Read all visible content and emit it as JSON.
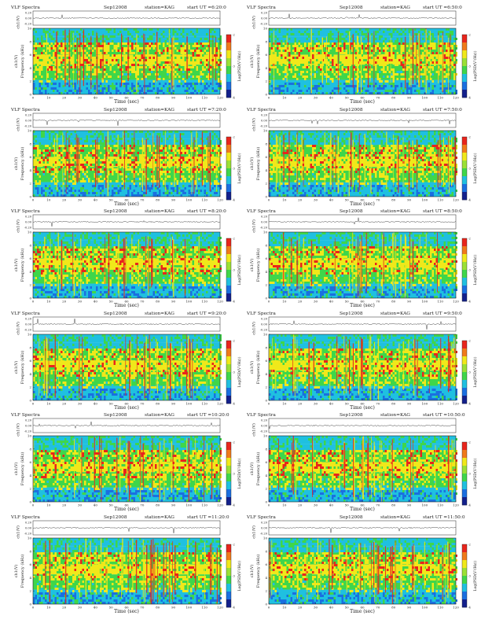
{
  "chart_data": [
    {
      "type": "heatmap",
      "header": {
        "left": "VLF Spectra",
        "date": "Sep12008",
        "station": "station=KAG",
        "start": "start UT =6:20:0"
      },
      "side": "left",
      "trace_ticks": [
        "0.20",
        "0.00",
        "-0.20"
      ],
      "trace_ylabel": "ch1(V)",
      "ylabel": "Frequency (kHz)",
      "y_ticks": [
        "0",
        "2",
        "4",
        "6",
        "8",
        "10"
      ],
      "xlabel": "Time (sec)",
      "x_ticks": [
        "0",
        "10",
        "20",
        "30",
        "40",
        "50",
        "60",
        "70",
        "80",
        "90",
        "100",
        "110",
        "120"
      ],
      "xlim": [
        0,
        120
      ],
      "ylim": [
        0,
        10
      ],
      "colorbar_label": "Log(PSD(V²/Hz))",
      "colorbar_ticks": [
        "-2",
        "-3",
        "-4"
      ]
    },
    {
      "type": "heatmap",
      "header": {
        "left": "VLF Spectra",
        "date": "Sep12008",
        "station": "station=KAG",
        "start": "start UT =6:50:0"
      },
      "side": "right",
      "trace_ticks": [
        "0.20",
        "0.00",
        "-0.20"
      ],
      "trace_ylabel": "ch1(V)",
      "ylabel": "Frequency (kHz)",
      "y_ticks": [
        "0",
        "2",
        "4",
        "6",
        "8",
        "10"
      ],
      "xlabel": "Time (sec)",
      "x_ticks": [
        "0",
        "10",
        "20",
        "30",
        "40",
        "50",
        "60",
        "70",
        "80",
        "90",
        "100",
        "110",
        "120"
      ],
      "xlim": [
        0,
        120
      ],
      "ylim": [
        0,
        10
      ],
      "colorbar_label": "Log(PSD(V²/Hz))",
      "colorbar_ticks": [
        "-2",
        "-3",
        "-4"
      ]
    },
    {
      "type": "heatmap",
      "header": {
        "left": "VLF Spectra",
        "date": "Sep12008",
        "station": "station=KAG",
        "start": "start UT =7:20:0"
      },
      "side": "left",
      "trace_ticks": [
        "0.20",
        "0.00",
        "-0.20"
      ],
      "trace_ylabel": "ch1(V)",
      "ylabel": "Frequency (kHz)",
      "y_ticks": [
        "0",
        "2",
        "4",
        "6",
        "8",
        "10"
      ],
      "xlabel": "Time (sec)",
      "x_ticks": [
        "0",
        "10",
        "20",
        "30",
        "40",
        "50",
        "60",
        "70",
        "80",
        "90",
        "100",
        "110",
        "120"
      ],
      "xlim": [
        0,
        120
      ],
      "ylim": [
        0,
        10
      ],
      "colorbar_label": "Log(PSD(V²/Hz))",
      "colorbar_ticks": [
        "-2",
        "-3",
        "-4"
      ]
    },
    {
      "type": "heatmap",
      "header": {
        "left": "VLF Spectra",
        "date": "Sep12008",
        "station": "station=KAG",
        "start": "start UT =7:50:0"
      },
      "side": "right",
      "trace_ticks": [
        "0.20",
        "0.00",
        "-0.20"
      ],
      "trace_ylabel": "ch1(V)",
      "ylabel": "Frequency (kHz)",
      "y_ticks": [
        "0",
        "2",
        "4",
        "6",
        "8",
        "10"
      ],
      "xlabel": "Time (sec)",
      "x_ticks": [
        "0",
        "10",
        "20",
        "30",
        "40",
        "50",
        "60",
        "70",
        "80",
        "90",
        "100",
        "110",
        "120"
      ],
      "xlim": [
        0,
        120
      ],
      "ylim": [
        0,
        10
      ],
      "colorbar_label": "Log(PSD(V²/Hz))",
      "colorbar_ticks": [
        "-2",
        "-3",
        "-4"
      ]
    },
    {
      "type": "heatmap",
      "header": {
        "left": "VLF Spectra",
        "date": "Sep12008",
        "station": "station=KAG",
        "start": "start UT =8:20:0"
      },
      "side": "left",
      "trace_ticks": [
        "0.20",
        "0.00",
        "-0.20"
      ],
      "trace_ylabel": "ch1(V)",
      "ylabel": "Frequency (kHz)",
      "y_ticks": [
        "0",
        "2",
        "4",
        "6",
        "8",
        "10"
      ],
      "xlabel": "Time (sec)",
      "x_ticks": [
        "0",
        "10",
        "20",
        "30",
        "40",
        "50",
        "60",
        "70",
        "80",
        "90",
        "100",
        "110",
        "120"
      ],
      "xlim": [
        0,
        120
      ],
      "ylim": [
        0,
        10
      ],
      "colorbar_label": "Log(PSD(V²/Hz))",
      "colorbar_ticks": [
        "-2",
        "-3",
        "-4"
      ]
    },
    {
      "type": "heatmap",
      "header": {
        "left": "VLF Spectra",
        "date": "Sep12008",
        "station": "station=KAG",
        "start": "start UT =8:50:0"
      },
      "side": "right",
      "trace_ticks": [
        "0.20",
        "0.00",
        "-0.20"
      ],
      "trace_ylabel": "ch1(V)",
      "ylabel": "Frequency (kHz)",
      "y_ticks": [
        "0",
        "2",
        "4",
        "6",
        "8",
        "10"
      ],
      "xlabel": "Time (sec)",
      "x_ticks": [
        "0",
        "10",
        "20",
        "30",
        "40",
        "50",
        "60",
        "70",
        "80",
        "90",
        "100",
        "110",
        "120"
      ],
      "xlim": [
        0,
        120
      ],
      "ylim": [
        0,
        10
      ],
      "colorbar_label": "Log(PSD(V²/Hz))",
      "colorbar_ticks": [
        "-2",
        "-3",
        "-4"
      ]
    },
    {
      "type": "heatmap",
      "header": {
        "left": "VLF Spectra",
        "date": "Sep12008",
        "station": "station=KAG",
        "start": "start UT =9:20:0"
      },
      "side": "left",
      "trace_ticks": [
        "0.20",
        "0.00",
        "-0.20"
      ],
      "trace_ylabel": "ch1(V)",
      "ylabel": "Frequency (kHz)",
      "y_ticks": [
        "0",
        "2",
        "4",
        "6",
        "8",
        "10"
      ],
      "xlabel": "Time (sec)",
      "x_ticks": [
        "0",
        "10",
        "20",
        "30",
        "40",
        "50",
        "60",
        "70",
        "80",
        "90",
        "100",
        "110",
        "120"
      ],
      "xlim": [
        0,
        120
      ],
      "ylim": [
        0,
        10
      ],
      "colorbar_label": "Log(PSD(V²/Hz))",
      "colorbar_ticks": [
        "-2",
        "-3",
        "-4"
      ]
    },
    {
      "type": "heatmap",
      "header": {
        "left": "VLF Spectra",
        "date": "Sep12008",
        "station": "station=KAG",
        "start": "start UT =9:50:0"
      },
      "side": "right",
      "trace_ticks": [
        "0.20",
        "0.00",
        "-0.20"
      ],
      "trace_ylabel": "ch1(V)",
      "ylabel": "Frequency (kHz)",
      "y_ticks": [
        "0",
        "2",
        "4",
        "6",
        "8",
        "10"
      ],
      "xlabel": "Time (sec)",
      "x_ticks": [
        "0",
        "10",
        "20",
        "30",
        "40",
        "50",
        "60",
        "70",
        "80",
        "90",
        "100",
        "110",
        "120"
      ],
      "xlim": [
        0,
        120
      ],
      "ylim": [
        0,
        10
      ],
      "colorbar_label": "Log(PSD(V²/Hz))",
      "colorbar_ticks": [
        "-2",
        "-3",
        "-4"
      ]
    },
    {
      "type": "heatmap",
      "header": {
        "left": "VLF Spectra",
        "date": "Sep12008",
        "station": "station=KAG",
        "start": "start UT =10:20:0"
      },
      "side": "left",
      "trace_ticks": [
        "0.20",
        "0.00",
        "-0.20"
      ],
      "trace_ylabel": "ch1(V)",
      "ylabel": "Frequency (kHz)",
      "y_ticks": [
        "0",
        "2",
        "4",
        "6",
        "8",
        "10"
      ],
      "xlabel": "Time (sec)",
      "x_ticks": [
        "0",
        "10",
        "20",
        "30",
        "40",
        "50",
        "60",
        "70",
        "80",
        "90",
        "100",
        "110",
        "120"
      ],
      "xlim": [
        0,
        120
      ],
      "ylim": [
        0,
        10
      ],
      "colorbar_label": "Log(PSD(V²/Hz))",
      "colorbar_ticks": [
        "-2",
        "-3",
        "-4"
      ]
    },
    {
      "type": "heatmap",
      "header": {
        "left": "VLF Spectra",
        "date": "Sep12008",
        "station": "station=KAG",
        "start": "start UT =10:50:0"
      },
      "side": "right",
      "trace_ticks": [
        "0.20",
        "0.00",
        "-0.20"
      ],
      "trace_ylabel": "ch1(V)",
      "ylabel": "Frequency (kHz)",
      "y_ticks": [
        "0",
        "2",
        "4",
        "6",
        "8",
        "10"
      ],
      "xlabel": "Time (sec)",
      "x_ticks": [
        "0",
        "10",
        "20",
        "30",
        "40",
        "50",
        "60",
        "70",
        "80",
        "90",
        "100",
        "110",
        "120"
      ],
      "xlim": [
        0,
        120
      ],
      "ylim": [
        0,
        10
      ],
      "colorbar_label": "Log(PSD(V²/Hz))",
      "colorbar_ticks": [
        "-2",
        "-3",
        "-4"
      ]
    },
    {
      "type": "heatmap",
      "header": {
        "left": "VLF Spectra",
        "date": "Sep12008",
        "station": "station=KAG",
        "start": "start UT =11:20:0"
      },
      "side": "left",
      "trace_ticks": [
        "0.20",
        "0.00",
        "-0.20"
      ],
      "trace_ylabel": "ch1(V)",
      "ylabel": "Frequency (kHz)",
      "y_ticks": [
        "0",
        "2",
        "4",
        "6",
        "8",
        "10"
      ],
      "xlabel": "Time (sec)",
      "x_ticks": [
        "0",
        "10",
        "20",
        "30",
        "40",
        "50",
        "60",
        "70",
        "80",
        "90",
        "100",
        "110",
        "120"
      ],
      "xlim": [
        0,
        120
      ],
      "ylim": [
        0,
        10
      ],
      "colorbar_label": "Log(PSD(V²/Hz))",
      "colorbar_ticks": [
        "-2",
        "-3",
        "-4"
      ]
    },
    {
      "type": "heatmap",
      "header": {
        "left": "VLF Spectra",
        "date": "Sep12008",
        "station": "station=KAG",
        "start": "start UT =11:50:0"
      },
      "side": "right",
      "trace_ticks": [
        "0.20",
        "0.00",
        "-0.20"
      ],
      "trace_ylabel": "ch1(V)",
      "ylabel": "Frequency (kHz)",
      "y_ticks": [
        "0",
        "2",
        "4",
        "6",
        "8",
        "10"
      ],
      "xlabel": "Time (sec)",
      "x_ticks": [
        "0",
        "10",
        "20",
        "30",
        "40",
        "50",
        "60",
        "70",
        "80",
        "90",
        "100",
        "110",
        "120"
      ],
      "xlim": [
        0,
        120
      ],
      "ylim": [
        0,
        10
      ],
      "colorbar_label": "Log(PSD(V²/Hz))",
      "colorbar_ticks": [
        "-2",
        "-3",
        "-4"
      ]
    }
  ],
  "colors": {
    "background": "#ffffff",
    "axis": "#222222",
    "trace": "#333333",
    "spectrum_low": "#1fc0e0",
    "spectrum_mid": "#3fd64a",
    "spectrum_high": "#f0e81a",
    "spectrum_peak": "#e8251c",
    "colorbar": [
      "#e8251c",
      "#f07a1a",
      "#f0e81a",
      "#9be035",
      "#3fd64a",
      "#1fc0e0",
      "#1a6fe0",
      "#13208c"
    ]
  }
}
